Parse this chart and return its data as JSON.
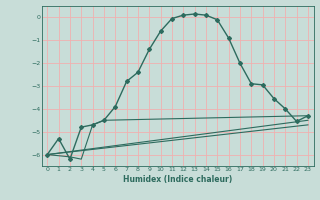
{
  "xlabel": "Humidex (Indice chaleur)",
  "ylabel": "",
  "background_color": "#c8ddd8",
  "grid_color": "#f0b0b0",
  "line_color": "#2d6b5e",
  "xlim": [
    -0.5,
    23.5
  ],
  "ylim": [
    -6.5,
    0.5
  ],
  "xticks": [
    0,
    1,
    2,
    3,
    4,
    5,
    6,
    7,
    8,
    9,
    10,
    11,
    12,
    13,
    14,
    15,
    16,
    17,
    18,
    19,
    20,
    21,
    22,
    23
  ],
  "yticks": [
    0,
    -1,
    -2,
    -3,
    -4,
    -5,
    -6
  ],
  "curve1_x": [
    0,
    1,
    2,
    3,
    4,
    5,
    6,
    7,
    8,
    9,
    10,
    11,
    12,
    13,
    14,
    15,
    16,
    17,
    18,
    19,
    20,
    21,
    22,
    23
  ],
  "curve1_y": [
    -6.0,
    -5.3,
    -6.2,
    -4.8,
    -4.7,
    -4.5,
    -3.9,
    -2.8,
    -2.4,
    -1.4,
    -0.6,
    -0.05,
    0.1,
    0.15,
    0.1,
    -0.1,
    -0.9,
    -2.0,
    -2.9,
    -2.95,
    -3.55,
    -4.0,
    -4.55,
    -4.3
  ],
  "curve2_x": [
    0,
    2,
    3,
    4,
    5,
    23
  ],
  "curve2_y": [
    -6.0,
    -6.1,
    -6.2,
    -4.7,
    -4.5,
    -4.3
  ],
  "curve3_x": [
    0,
    23
  ],
  "curve3_y": [
    -6.0,
    -4.5
  ],
  "curve4_x": [
    0,
    23
  ],
  "curve4_y": [
    -6.0,
    -4.7
  ]
}
